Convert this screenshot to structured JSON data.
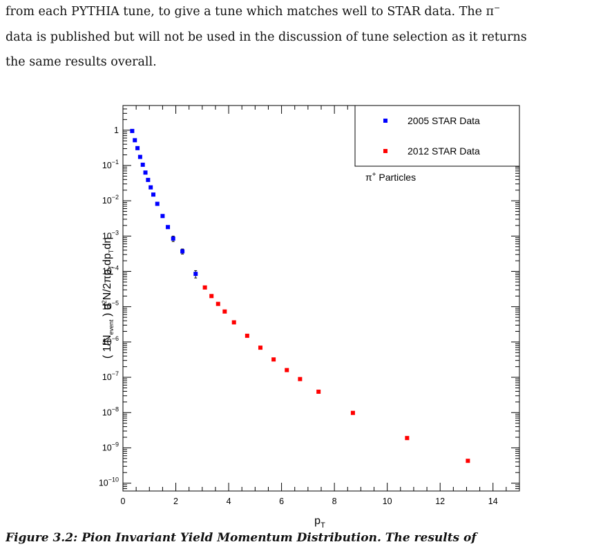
{
  "text": {
    "line1": "from each PYTHIA tune, to give a tune which matches well to STAR data. The π",
    "line1_sup": "−",
    "line2": "data is published but will not be used in the discussion of tune selection as it returns",
    "line3": "the same results overall.",
    "caption": "Figure 3.2: Pion Invariant Yield Momentum Distribution. The results of"
  },
  "chart_data": {
    "type": "scatter",
    "yscale": "log",
    "xlabel": "p",
    "xlabel_sub": "T",
    "ylabel": "( 1/N_event ) d²N/2πp_T dp_T dη",
    "xlim": [
      0,
      15
    ],
    "ylim": [
      6e-11,
      5
    ],
    "x_ticks": [
      0,
      2,
      4,
      6,
      8,
      10,
      12,
      14
    ],
    "y_ticks": [
      1e-10,
      1e-09,
      1e-08,
      1e-07,
      1e-06,
      1e-05,
      0.0001,
      0.001,
      0.01,
      0.1,
      1
    ],
    "y_tick_labels": [
      {
        "base": "10",
        "exp": "−10"
      },
      {
        "base": "10",
        "exp": "−9"
      },
      {
        "base": "10",
        "exp": "−8"
      },
      {
        "base": "10",
        "exp": "−7"
      },
      {
        "base": "10",
        "exp": "−6"
      },
      {
        "base": "10",
        "exp": "−5"
      },
      {
        "base": "10",
        "exp": "−4"
      },
      {
        "base": "10",
        "exp": "−3"
      },
      {
        "base": "10",
        "exp": "−2"
      },
      {
        "base": "10",
        "exp": "−1"
      },
      {
        "base": "1",
        "exp": ""
      }
    ],
    "annotation": {
      "symbol": "π",
      "sup": "+",
      "text": " Particles"
    },
    "legend_position": "top-right",
    "series": [
      {
        "name": "2005 STAR Data",
        "color": "#0000ff",
        "x": [
          0.35,
          0.45,
          0.55,
          0.65,
          0.75,
          0.85,
          0.95,
          1.05,
          1.15,
          1.3,
          1.5,
          1.7,
          1.9,
          2.25,
          2.75
        ],
        "y": [
          0.95,
          0.52,
          0.31,
          0.175,
          0.105,
          0.063,
          0.039,
          0.024,
          0.015,
          0.0082,
          0.0037,
          0.0018,
          0.00085,
          0.00037,
          8.5e-05
        ],
        "yerr": [
          0,
          0,
          0,
          0,
          0,
          0,
          0,
          0,
          0,
          0,
          0,
          0,
          0.00015,
          6e-05,
          2e-05
        ]
      },
      {
        "name": "2012 STAR Data",
        "color": "#ff0000",
        "x": [
          3.1,
          3.35,
          3.6,
          3.85,
          4.2,
          4.7,
          5.2,
          5.7,
          6.2,
          6.7,
          7.4,
          8.7,
          10.75,
          13.05
        ],
        "y": [
          3.5e-05,
          2e-05,
          1.2e-05,
          7.3e-06,
          3.6e-06,
          1.5e-06,
          6.9e-07,
          3.2e-07,
          1.6e-07,
          8.9e-08,
          3.9e-08,
          9.8e-09,
          1.9e-09,
          4.3e-10
        ],
        "yerr": []
      }
    ]
  }
}
